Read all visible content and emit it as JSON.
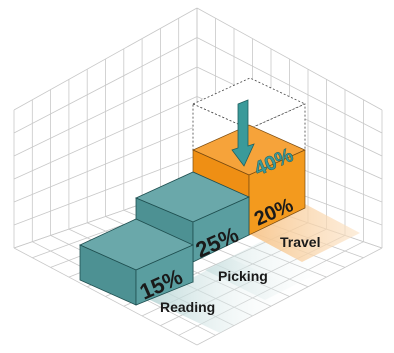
{
  "chart_data": {
    "type": "bar",
    "categories": [
      "Reading",
      "Picking",
      "Travel"
    ],
    "values": [
      15,
      25,
      20
    ],
    "value_labels": [
      "15%",
      "25%",
      "20%"
    ],
    "stacked_extra": {
      "category": "Travel",
      "value": 40,
      "label": "40%"
    },
    "colors": {
      "reading": "#5a9ea0",
      "picking": "#5a9ea0",
      "travel": "#f39a1e",
      "extra_outline": "#555555",
      "arrow": "#2e8c8c",
      "grid": "#c8c8c8"
    },
    "title": "",
    "xlabel": "",
    "ylabel": ""
  }
}
